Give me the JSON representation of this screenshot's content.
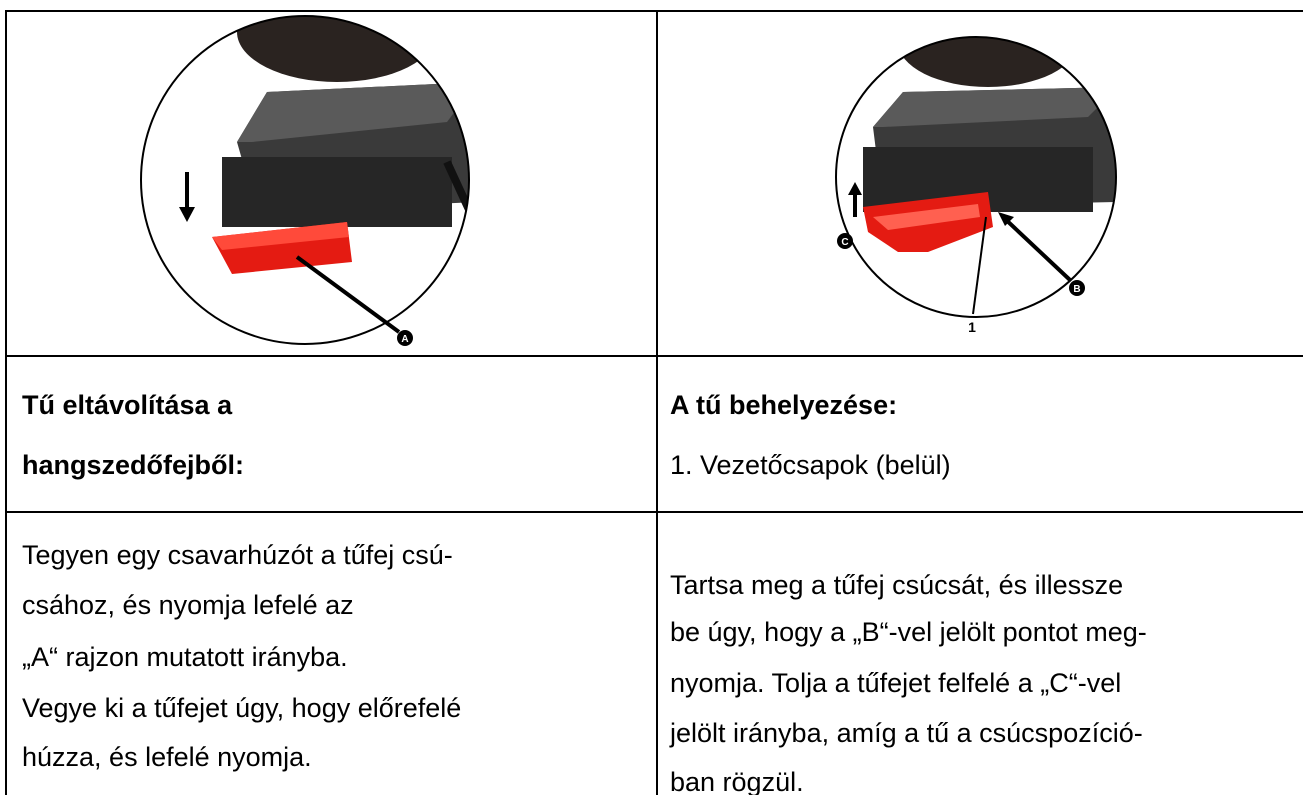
{
  "table": {
    "rows": [
      [
        {
          "callouts": [
            "A"
          ]
        },
        {
          "callouts": [
            "C",
            "B",
            "1"
          ]
        }
      ],
      [
        {
          "lines": [
            "Tű eltávolítása a",
            "hangszedőfejből:"
          ]
        },
        {
          "lines": [
            "A tű behelyezése:",
            "1. Vezetőcsapok (belül)"
          ]
        }
      ],
      [
        {
          "lines": [
            "Tegyen egy csavarhúzót a tűfej csú-",
            "csához, és nyomja lefelé az",
            "„A“ rajzon mutatott irányba.",
            "Vegye ki a tűfejet úgy, hogy előrefelé",
            "húzza, és lefelé nyomja."
          ]
        },
        {
          "lines": [
            "Tartsa meg a tűfej csúcsát, és illessze",
            "be úgy, hogy a „B“-vel jelölt pontot meg-",
            "nyomja. Tolja a tűfejet felfelé a „C“-vel",
            "jelölt irányba, amíg a tű a csúcspozíció-",
            "ban rögzül."
          ]
        }
      ]
    ]
  }
}
